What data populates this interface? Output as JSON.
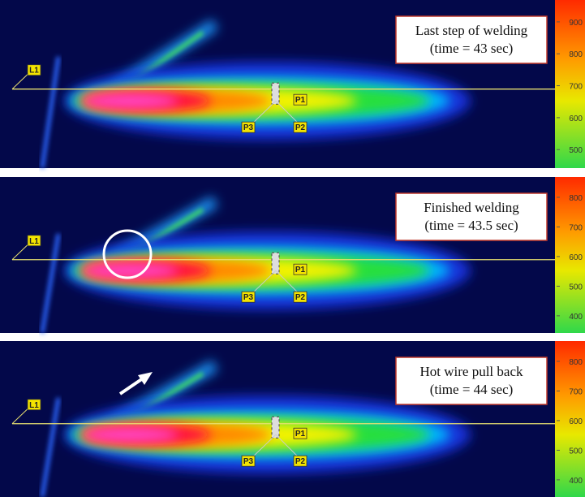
{
  "panels": [
    {
      "caption": [
        "Last step of welding",
        "(time = 43 sec)"
      ],
      "scale": [
        900,
        800,
        700,
        600,
        500
      ],
      "markers": [
        "L1",
        "P1",
        "P2",
        "P3"
      ]
    },
    {
      "caption": [
        "Finished welding",
        "(time = 43.5 sec)"
      ],
      "scale": [
        800,
        700,
        600,
        500,
        400
      ],
      "markers": [
        "L1",
        "P1",
        "P2",
        "P3"
      ]
    },
    {
      "caption": [
        "Hot wire pull back",
        "(time = 44 sec)"
      ],
      "scale": [
        800,
        700,
        600,
        500,
        400
      ],
      "markers": [
        "L1",
        "P1",
        "P2",
        "P3"
      ]
    }
  ]
}
